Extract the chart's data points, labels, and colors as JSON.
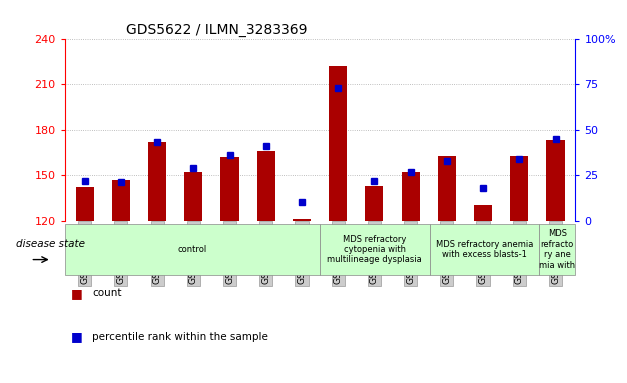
{
  "title": "GDS5622 / ILMN_3283369",
  "samples": [
    "GSM1515746",
    "GSM1515747",
    "GSM1515748",
    "GSM1515749",
    "GSM1515750",
    "GSM1515751",
    "GSM1515752",
    "GSM1515753",
    "GSM1515754",
    "GSM1515755",
    "GSM1515756",
    "GSM1515757",
    "GSM1515758",
    "GSM1515759"
  ],
  "counts": [
    142,
    147,
    172,
    152,
    162,
    166,
    121,
    222,
    143,
    152,
    163,
    130,
    163,
    173
  ],
  "percentiles": [
    22,
    21,
    43,
    29,
    36,
    41,
    10,
    73,
    22,
    27,
    33,
    18,
    34,
    45
  ],
  "ylim_left": [
    120,
    240
  ],
  "ylim_right": [
    0,
    100
  ],
  "yticks_left": [
    120,
    150,
    180,
    210,
    240
  ],
  "yticks_right": [
    0,
    25,
    50,
    75,
    100
  ],
  "bar_color": "#AA0000",
  "dot_color": "#0000CC",
  "grid_color": "#AAAAAA",
  "bg_color": "#FFFFFF",
  "ticklabel_bg": "#CCCCCC",
  "disease_groups": [
    {
      "label": "control",
      "start": 0,
      "end": 7
    },
    {
      "label": "MDS refractory\ncytopenia with\nmultilineage dysplasia",
      "start": 7,
      "end": 10
    },
    {
      "label": "MDS refractory anemia\nwith excess blasts-1",
      "start": 10,
      "end": 13
    },
    {
      "label": "MDS\nrefracto\nry ane\nmia with",
      "start": 13,
      "end": 14
    }
  ],
  "ds_color": "#CCFFCC",
  "ds_label": "disease state",
  "legend": [
    {
      "label": "count",
      "color": "#AA0000"
    },
    {
      "label": "percentile rank within the sample",
      "color": "#0000CC"
    }
  ]
}
